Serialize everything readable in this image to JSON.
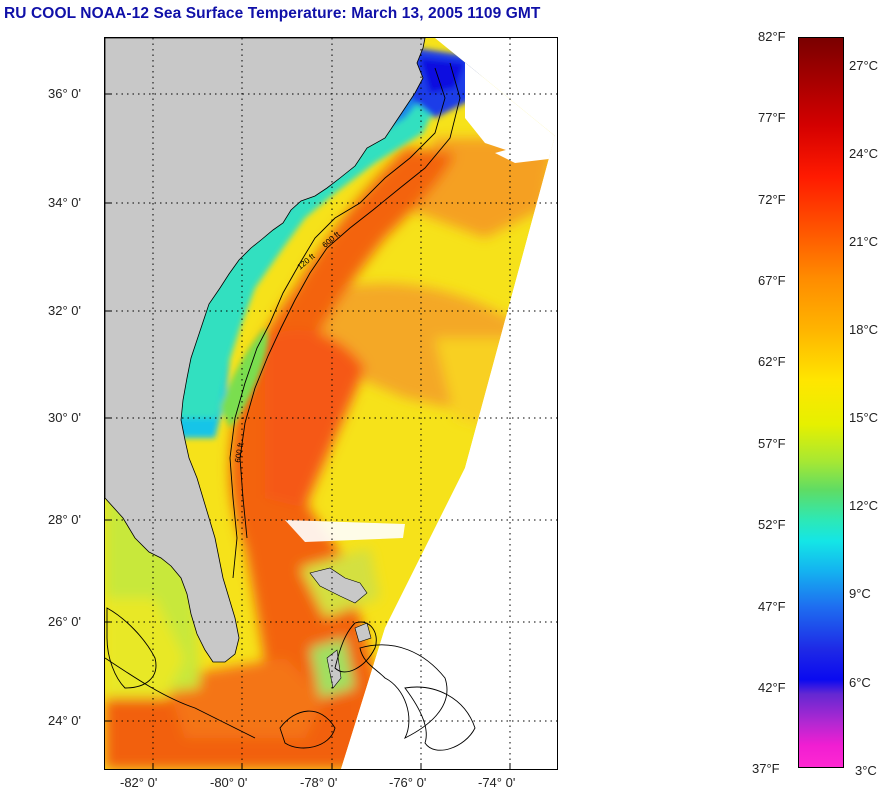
{
  "title": "RU COOL  NOAA-12  Sea Surface Temperature:  March 13, 2005 1109 GMT",
  "map": {
    "lat_labels": [
      "36° 0'",
      "34° 0'",
      "32° 0'",
      "30° 0'",
      "28° 0'",
      "26° 0'",
      "24° 0'"
    ],
    "lon_labels": [
      "-82° 0'",
      "-80° 0'",
      "-78° 0'",
      "-76° 0'",
      "-74° 0'"
    ],
    "contour_labels": [
      "600 ft",
      "120 ft"
    ],
    "colors": {
      "land": "#c8c8c8",
      "clouds": "#ffffff",
      "contour": "#000000",
      "grid": "#000000"
    }
  },
  "colorbar": {
    "fahrenheit": [
      "82°F",
      "77°F",
      "72°F",
      "67°F",
      "62°F",
      "57°F",
      "52°F",
      "47°F",
      "42°F",
      "37°F"
    ],
    "celsius": [
      "27°C",
      "24°C",
      "21°C",
      "18°C",
      "15°C",
      "12°C",
      "9°C",
      "6°C",
      "3°C"
    ],
    "range_f": [
      37,
      82
    ],
    "range_c": [
      2.8,
      27.8
    ]
  }
}
